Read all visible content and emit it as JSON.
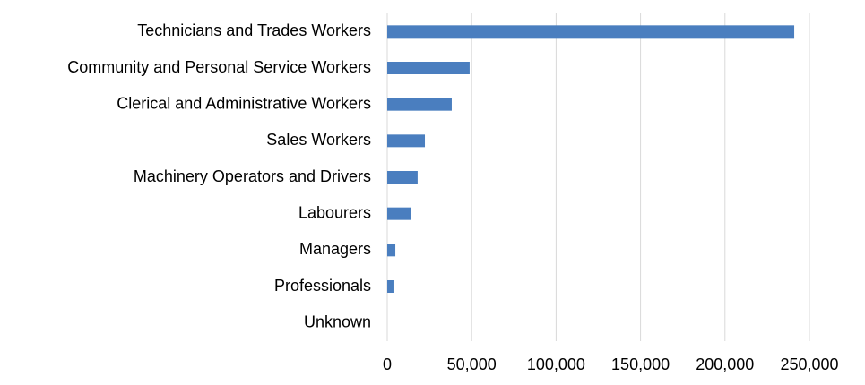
{
  "chart_data": {
    "type": "bar",
    "orientation": "horizontal",
    "categories": [
      "Technicians and Trades Workers",
      "Community and Personal Service Workers",
      "Clerical and Administrative Workers",
      "Sales Workers",
      "Machinery Operators and Drivers",
      "Labourers",
      "Managers",
      "Professionals",
      "Unknown"
    ],
    "values": [
      241000,
      48800,
      38200,
      22300,
      18000,
      14300,
      4800,
      3700,
      0
    ],
    "color": "#4a7ebf",
    "xlim": [
      0,
      250000
    ],
    "xticks": [
      0,
      {
        "value": 50000,
        "label": "50,000"
      },
      {
        "value": 100000,
        "label": "100,000"
      },
      {
        "value": 150000,
        "label": "150,000"
      },
      {
        "value": 200000,
        "label": "200,000"
      },
      {
        "value": 250000,
        "label": "250,000"
      }
    ],
    "grid": true
  }
}
